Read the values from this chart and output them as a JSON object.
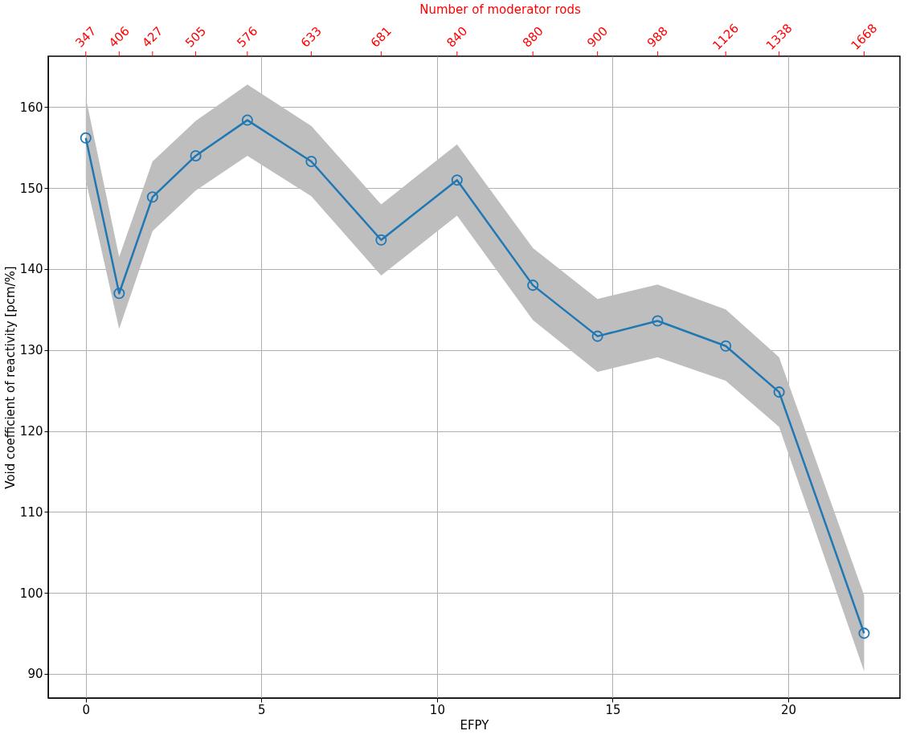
{
  "chart_data": {
    "type": "line",
    "xlabel": "EFPY",
    "ylabel": "Void coefficient of reactivity [pcm/%]",
    "x2label": "Number of moderator rods",
    "xlim": [
      -1.07,
      23.18
    ],
    "ylim": [
      87.0,
      166.3
    ],
    "xticks": [
      0,
      5,
      10,
      15,
      20
    ],
    "yticks": [
      90,
      100,
      110,
      120,
      130,
      140,
      150,
      160
    ],
    "annotations": [
      {
        "text": "347",
        "x": 0
      },
      {
        "text": "406",
        "x": 0.95
      },
      {
        "text": "427",
        "x": 1.9
      },
      {
        "text": "505",
        "x": 3.13
      },
      {
        "text": "576",
        "x": 4.6
      },
      {
        "text": "633",
        "x": 6.42
      },
      {
        "text": "681",
        "x": 8.41
      },
      {
        "text": "840",
        "x": 10.57
      },
      {
        "text": "880",
        "x": 12.73
      },
      {
        "text": "900",
        "x": 14.57
      },
      {
        "text": "988",
        "x": 16.28
      },
      {
        "text": "1126",
        "x": 18.22
      },
      {
        "text": "1338",
        "x": 19.74
      },
      {
        "text": "1668",
        "x": 22.16
      }
    ],
    "grid": true,
    "marker": "circle",
    "line_style": "solid",
    "series": [
      {
        "color": "#1f77b4",
        "x": [
          0,
          0.95,
          1.9,
          3.13,
          4.6,
          6.42,
          8.41,
          10.57,
          12.73,
          14.57,
          16.28,
          18.22,
          19.74,
          22.16
        ],
        "values": [
          156.2,
          137.0,
          148.9,
          154.0,
          158.4,
          153.3,
          143.6,
          151.0,
          138.0,
          131.7,
          133.6,
          130.5,
          124.8,
          95.0
        ],
        "lower": [
          151.0,
          132.6,
          144.7,
          149.7,
          154.0,
          149.0,
          139.2,
          146.6,
          133.7,
          127.3,
          129.1,
          126.2,
          120.5,
          90.3
        ],
        "upper": [
          161.2,
          141.5,
          153.3,
          158.3,
          162.8,
          157.7,
          148.0,
          155.4,
          142.6,
          136.3,
          138.1,
          135.0,
          129.1,
          99.7
        ]
      }
    ]
  }
}
